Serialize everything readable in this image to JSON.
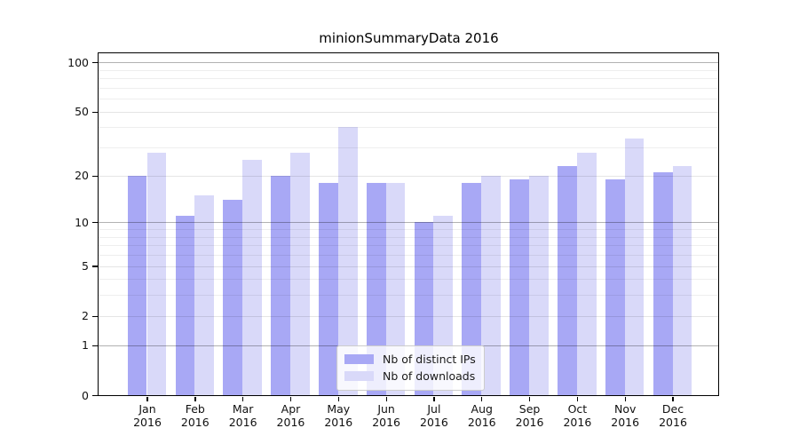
{
  "chart_data": {
    "type": "bar",
    "title": "minionSummaryData 2016",
    "categories": [
      "Jan",
      "Feb",
      "Mar",
      "Apr",
      "May",
      "Jun",
      "Jul",
      "Aug",
      "Sep",
      "Oct",
      "Nov",
      "Dec"
    ],
    "x_year": "2016",
    "series": [
      {
        "name": "Nb of distinct IPs",
        "color": "#a8a8f5",
        "values": [
          20,
          11,
          14,
          20,
          18,
          18,
          10,
          18,
          19,
          23,
          19,
          21
        ]
      },
      {
        "name": "Nb of downloads",
        "color": "#d9d9f9",
        "values": [
          28,
          15,
          25,
          28,
          40,
          18,
          11,
          20,
          20,
          28,
          34,
          23
        ]
      }
    ],
    "yscale": "symlog",
    "y_ticks": [
      100,
      50,
      20,
      10,
      5,
      2,
      1,
      0
    ],
    "ylim": [
      0,
      116
    ],
    "grid": "on",
    "legend_position": "bottom-center"
  }
}
